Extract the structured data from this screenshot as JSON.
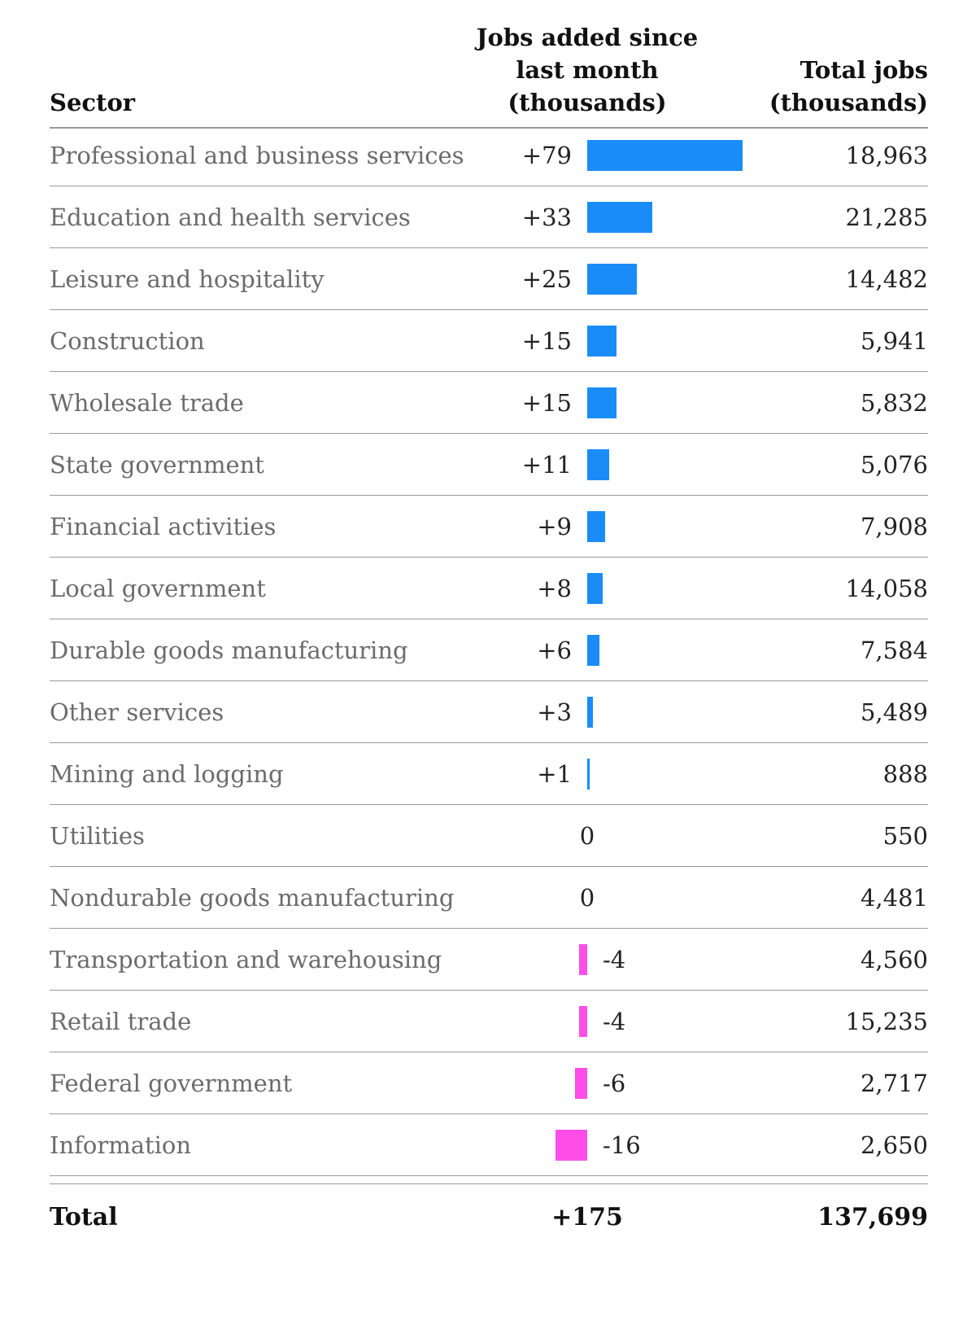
{
  "header": {
    "sector": "Sector",
    "jobs_added_lines": [
      "Jobs added since",
      "last month",
      "(thousands)"
    ],
    "total_jobs_lines": [
      "Total jobs",
      "(thousands)"
    ]
  },
  "colors": {
    "positive": "#1a8cf7",
    "negative": "#ff4de8"
  },
  "chart_data": {
    "type": "table",
    "columns": [
      "Sector",
      "Jobs added since last month (thousands)",
      "Total jobs (thousands)"
    ],
    "rows": [
      {
        "sector": "Professional and business services",
        "change": 79,
        "change_label": "+79",
        "total": "18,963"
      },
      {
        "sector": "Education and health services",
        "change": 33,
        "change_label": "+33",
        "total": "21,285"
      },
      {
        "sector": "Leisure and hospitality",
        "change": 25,
        "change_label": "+25",
        "total": "14,482"
      },
      {
        "sector": "Construction",
        "change": 15,
        "change_label": "+15",
        "total": "5,941"
      },
      {
        "sector": "Wholesale trade",
        "change": 15,
        "change_label": "+15",
        "total": "5,832"
      },
      {
        "sector": "State government",
        "change": 11,
        "change_label": "+11",
        "total": "5,076"
      },
      {
        "sector": "Financial activities",
        "change": 9,
        "change_label": "+9",
        "total": "7,908"
      },
      {
        "sector": "Local government",
        "change": 8,
        "change_label": "+8",
        "total": "14,058"
      },
      {
        "sector": "Durable goods manufacturing",
        "change": 6,
        "change_label": "+6",
        "total": "7,584"
      },
      {
        "sector": "Other services",
        "change": 3,
        "change_label": "+3",
        "total": "5,489"
      },
      {
        "sector": "Mining and logging",
        "change": 1,
        "change_label": "+1",
        "total": "888"
      },
      {
        "sector": "Utilities",
        "change": 0,
        "change_label": "0",
        "total": "550"
      },
      {
        "sector": "Nondurable goods manufacturing",
        "change": 0,
        "change_label": "0",
        "total": "4,481"
      },
      {
        "sector": "Transportation and warehousing",
        "change": -4,
        "change_label": "-4",
        "total": "4,560"
      },
      {
        "sector": "Retail trade",
        "change": -4,
        "change_label": "-4",
        "total": "15,235"
      },
      {
        "sector": "Federal government",
        "change": -6,
        "change_label": "-6",
        "total": "2,717"
      },
      {
        "sector": "Information",
        "change": -16,
        "change_label": "-16",
        "total": "2,650"
      }
    ],
    "total_row": {
      "label": "Total",
      "change_label": "+175",
      "total": "137,699"
    }
  }
}
